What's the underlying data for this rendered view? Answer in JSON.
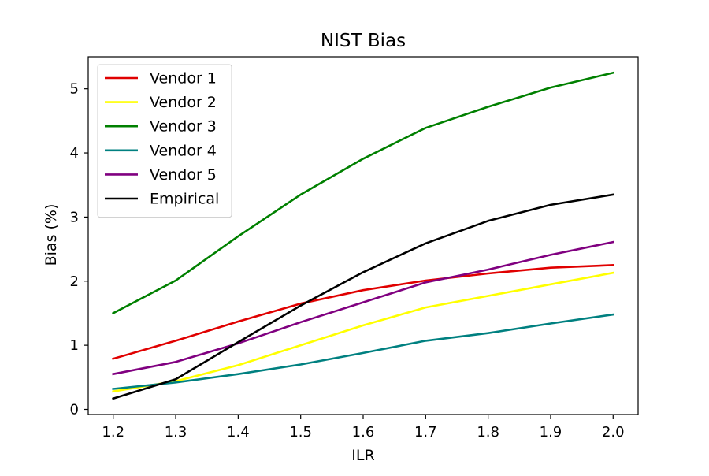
{
  "chart_data": {
    "type": "line",
    "title": "NIST Bias",
    "xlabel": "ILR",
    "ylabel": "Bias (%)",
    "x": [
      1.2,
      1.3,
      1.4,
      1.5,
      1.6,
      1.7,
      1.8,
      1.9,
      2.0
    ],
    "xlim": [
      1.16,
      2.04
    ],
    "ylim": [
      -0.08,
      5.5
    ],
    "x_ticks": [
      "1.2",
      "1.3",
      "1.4",
      "1.5",
      "1.6",
      "1.7",
      "1.8",
      "1.9",
      "2.0"
    ],
    "y_ticks": [
      "0",
      "1",
      "2",
      "3",
      "4",
      "5"
    ],
    "grid": false,
    "legend_position": "top-left",
    "series": [
      {
        "name": "Vendor 1",
        "color": "#e00000",
        "values": [
          0.79,
          1.07,
          1.37,
          1.65,
          1.86,
          2.01,
          2.12,
          2.21,
          2.25
        ]
      },
      {
        "name": "Vendor 2",
        "color": "#ffff00",
        "values": [
          0.28,
          0.44,
          0.69,
          1.0,
          1.31,
          1.59,
          1.77,
          1.95,
          2.13
        ]
      },
      {
        "name": "Vendor 3",
        "color": "#008000",
        "values": [
          1.5,
          2.01,
          2.7,
          3.35,
          3.91,
          4.39,
          4.72,
          5.02,
          5.25
        ]
      },
      {
        "name": "Vendor 4",
        "color": "#008080",
        "values": [
          0.32,
          0.42,
          0.55,
          0.7,
          0.88,
          1.07,
          1.19,
          1.34,
          1.48
        ]
      },
      {
        "name": "Vendor 5",
        "color": "#800080",
        "values": [
          0.55,
          0.74,
          1.03,
          1.36,
          1.67,
          1.98,
          2.18,
          2.41,
          2.61
        ]
      },
      {
        "name": "Empirical",
        "color": "#000000",
        "values": [
          0.17,
          0.47,
          1.05,
          1.62,
          2.14,
          2.59,
          2.94,
          3.19,
          3.35
        ]
      }
    ]
  }
}
